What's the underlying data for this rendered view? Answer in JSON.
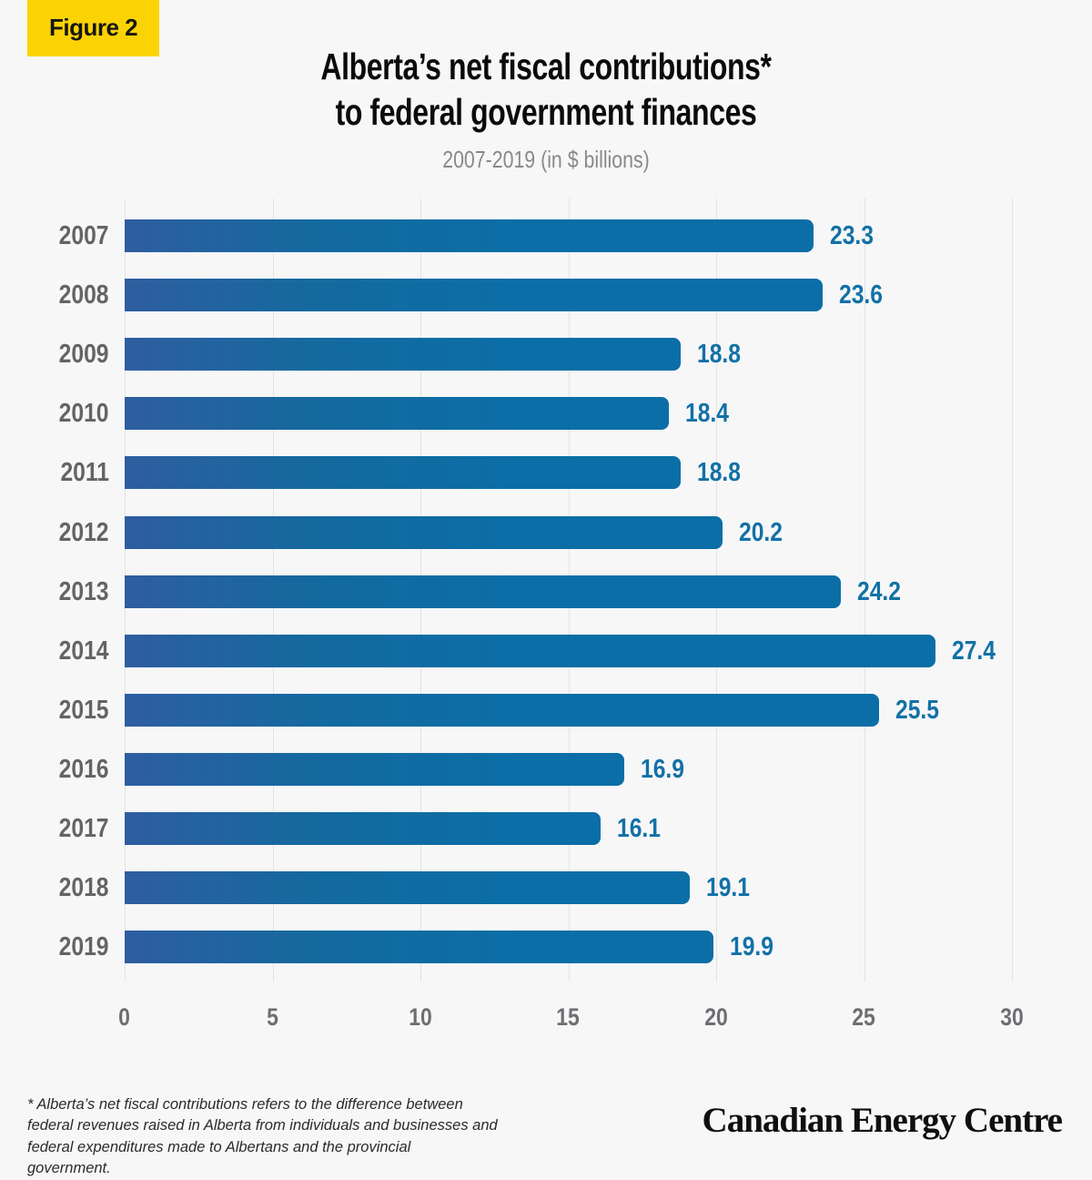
{
  "figure_label": "Figure 2",
  "header": {
    "title_line1": "Alberta’s net fiscal contributions*",
    "title_line2": "to federal government finances",
    "subtitle": "2007-2019 (in $ billions)"
  },
  "footer": {
    "footnote": "* Alberta’s net fiscal contributions refers to the difference between federal revenues raised in Alberta from individuals and businesses and federal expenditures made to Albertans and the provincial government.",
    "logo_text": "Canadian Energy Centre"
  },
  "colors": {
    "background": "#f7f7f8",
    "badge_yellow": "#fbd304",
    "bar_gradient_left": "#2e5da0",
    "bar_gradient_right": "#0b6ea6",
    "value_label_blue": "#1271a6",
    "year_label_gray": "#636466",
    "axis_label_gray": "#6d6e71",
    "gridline_gray": "#e2e3e5",
    "subtitle_gray": "#87898c"
  },
  "chart_data": {
    "type": "bar",
    "orientation": "horizontal",
    "title": "Alberta’s net fiscal contributions* to federal government finances",
    "subtitle": "2007-2019 (in $ billions)",
    "categories": [
      "2007",
      "2008",
      "2009",
      "2010",
      "2011",
      "2012",
      "2013",
      "2014",
      "2015",
      "2016",
      "2017",
      "2018",
      "2019"
    ],
    "values": [
      23.3,
      23.6,
      18.8,
      18.4,
      18.8,
      20.2,
      24.2,
      27.4,
      25.5,
      16.9,
      16.1,
      19.1,
      19.9
    ],
    "value_labels": [
      "23.3",
      "23.6",
      "18.8",
      "18.4",
      "18.8",
      "20.2",
      "24.2",
      "27.4",
      "25.5",
      "16.9",
      "16.1",
      "19.1",
      "19.9"
    ],
    "xlabel": "",
    "ylabel": "",
    "xlim": [
      0,
      30
    ],
    "xticks": [
      0,
      5,
      10,
      15,
      20,
      25,
      30
    ],
    "grid": true,
    "legend": null
  }
}
